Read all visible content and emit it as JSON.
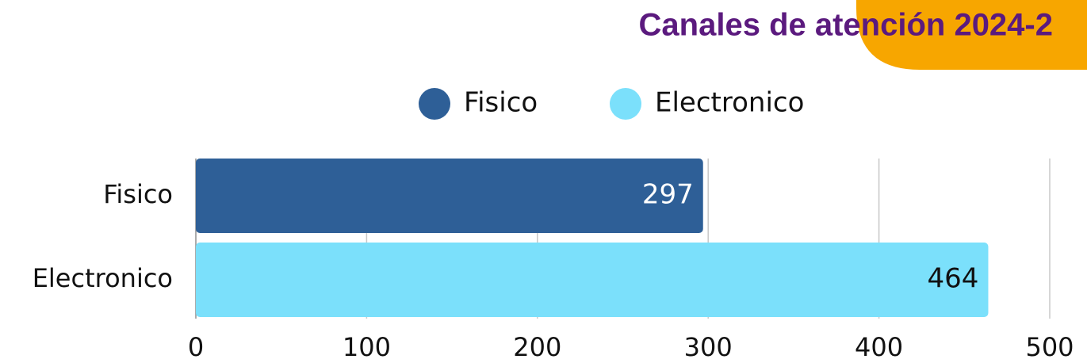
{
  "chart_data": {
    "type": "hbar",
    "title": "Canales de atención 2024-2",
    "categories": [
      "Fisico",
      "Electronico"
    ],
    "values": [
      297,
      464
    ],
    "colors": [
      "#2e5f97",
      "#7be0fb"
    ],
    "xlim": [
      0,
      500
    ],
    "xticks": [
      0,
      100,
      200,
      300,
      400,
      500
    ],
    "grid": true,
    "legend": "top"
  }
}
